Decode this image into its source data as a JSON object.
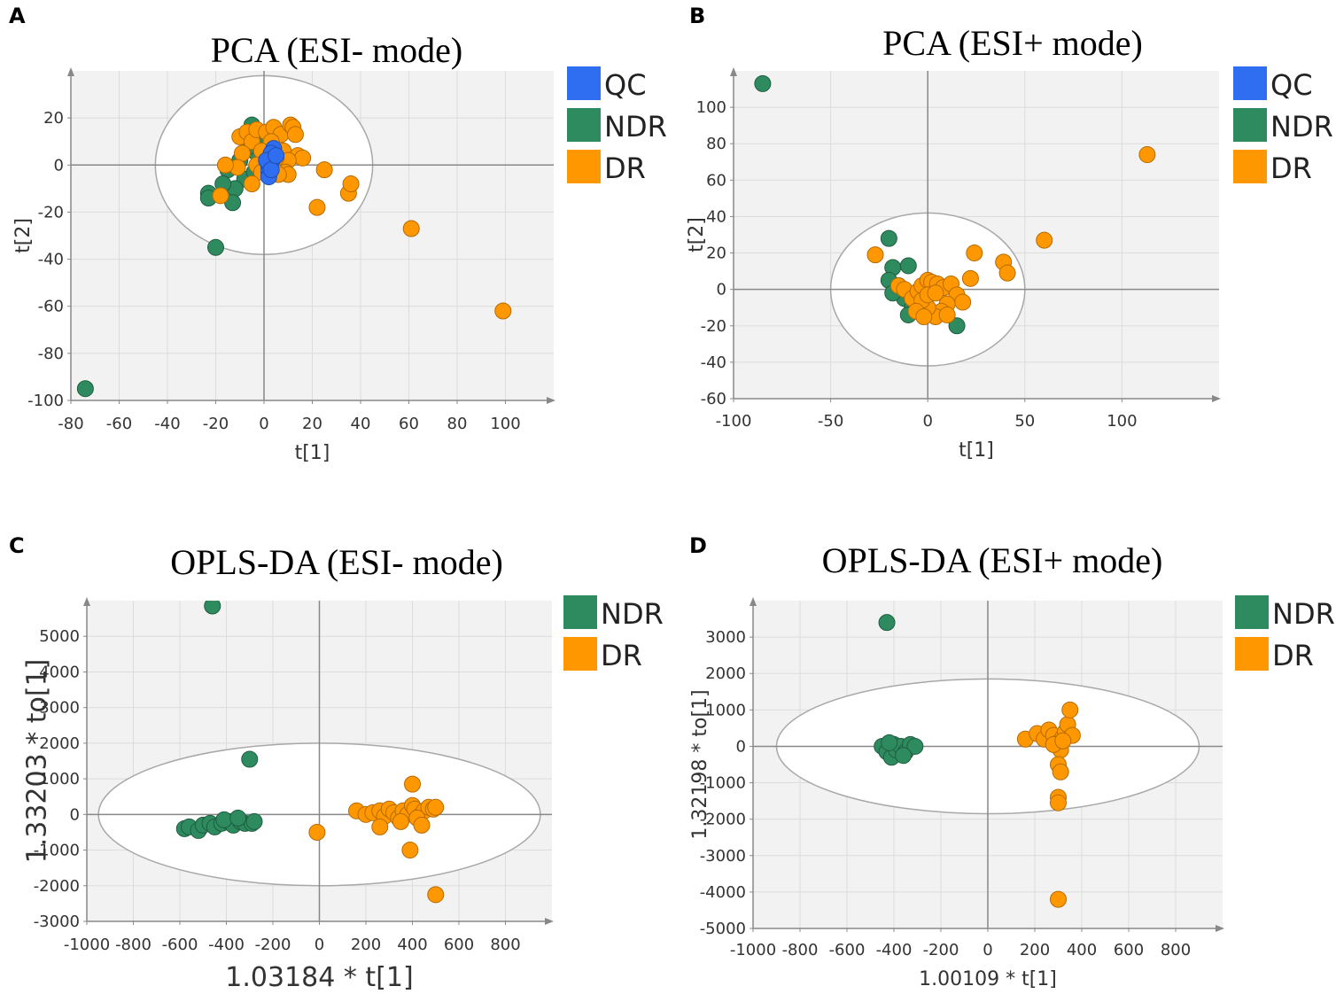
{
  "colors": {
    "QC": "#2f6ef0",
    "NDR": "#2e8b5f",
    "DR": "#ff9800",
    "plot_bg": "#f2f2f2",
    "grid": "#dcdcdc",
    "axis": "#888888",
    "ellipse": "#a8a8a8"
  },
  "chart_data": [
    {
      "type": "scatter",
      "panel": "A",
      "title": "PCA (ESI- mode)",
      "xlabel": "t[1]",
      "ylabel": "t[2]",
      "xlim": [
        -80,
        120
      ],
      "ylim": [
        -100,
        40
      ],
      "xticks": [
        -80,
        -60,
        -40,
        -20,
        0,
        20,
        40,
        60,
        80,
        100
      ],
      "yticks": [
        -100,
        -80,
        -60,
        -40,
        -20,
        0,
        20
      ],
      "ellipse": {
        "cx": 0,
        "cy": 0,
        "rx": 45,
        "ry": 38
      },
      "legend": [
        "QC",
        "NDR",
        "DR"
      ],
      "series": [
        {
          "name": "NDR",
          "points": [
            [
              -5,
              17
            ],
            [
              -1,
              12
            ],
            [
              -3,
              5
            ],
            [
              -10,
              2
            ],
            [
              -15,
              -2
            ],
            [
              -8,
              -6
            ],
            [
              -12,
              -10
            ],
            [
              -17,
              -8
            ],
            [
              -23,
              -12
            ],
            [
              -23,
              -14
            ],
            [
              -13,
              -16
            ],
            [
              -20,
              -35
            ],
            [
              -74,
              -95
            ],
            [
              -4,
              -3
            ],
            [
              -6,
              8
            ]
          ]
        },
        {
          "name": "DR",
          "points": [
            [
              -10,
              12
            ],
            [
              -7,
              14
            ],
            [
              -5,
              10
            ],
            [
              -3,
              15
            ],
            [
              1,
              14
            ],
            [
              4,
              16
            ],
            [
              7,
              13
            ],
            [
              11,
              17
            ],
            [
              12,
              16
            ],
            [
              13,
              13
            ],
            [
              3,
              10
            ],
            [
              8,
              6
            ],
            [
              14,
              4
            ],
            [
              16,
              3
            ],
            [
              10,
              2
            ],
            [
              5,
              3
            ],
            [
              -1,
              6
            ],
            [
              -9,
              5
            ],
            [
              -11,
              -1
            ],
            [
              -16,
              0
            ],
            [
              -3,
              0
            ],
            [
              2,
              -1
            ],
            [
              -1,
              -3
            ],
            [
              9,
              -3
            ],
            [
              10,
              -4
            ],
            [
              6,
              -4
            ],
            [
              -5,
              -8
            ],
            [
              -18,
              -13
            ],
            [
              25,
              -2
            ],
            [
              22,
              -18
            ],
            [
              35,
              -12
            ],
            [
              36,
              -8
            ],
            [
              61,
              -27
            ],
            [
              99,
              -62
            ]
          ]
        },
        {
          "name": "QC",
          "points": [
            [
              4,
              7
            ],
            [
              3,
              5
            ],
            [
              4,
              3
            ],
            [
              3,
              1
            ],
            [
              2,
              -1
            ],
            [
              2,
              -3
            ],
            [
              2,
              -5
            ],
            [
              1,
              2
            ],
            [
              3,
              -2
            ],
            [
              5,
              4
            ]
          ]
        }
      ]
    },
    {
      "type": "scatter",
      "panel": "B",
      "title": "PCA (ESI+ mode)",
      "xlabel": "t[1]",
      "ylabel": "t[2]",
      "xlim": [
        -100,
        150
      ],
      "ylim": [
        -60,
        120
      ],
      "xticks": [
        -100,
        -50,
        0,
        50,
        100
      ],
      "yticks": [
        -60,
        -40,
        -20,
        0,
        20,
        40,
        60,
        80,
        100
      ],
      "ellipse": {
        "cx": 0,
        "cy": 0,
        "rx": 50,
        "ry": 42
      },
      "legend": [
        "QC",
        "NDR",
        "DR"
      ],
      "series": [
        {
          "name": "NDR",
          "points": [
            [
              -85,
              113
            ],
            [
              -20,
              28
            ],
            [
              -18,
              12
            ],
            [
              -10,
              13
            ],
            [
              -20,
              5
            ],
            [
              -15,
              2
            ],
            [
              -12,
              -5
            ],
            [
              -8,
              -10
            ],
            [
              -10,
              -14
            ],
            [
              -5,
              -8
            ],
            [
              -2,
              -12
            ],
            [
              15,
              -20
            ],
            [
              -18,
              -2
            ]
          ]
        },
        {
          "name": "DR",
          "points": [
            [
              -27,
              19
            ],
            [
              -15,
              2
            ],
            [
              -12,
              0
            ],
            [
              -8,
              -5
            ],
            [
              -5,
              -1
            ],
            [
              -3,
              2
            ],
            [
              0,
              5
            ],
            [
              2,
              4
            ],
            [
              5,
              3
            ],
            [
              8,
              1
            ],
            [
              12,
              3
            ],
            [
              15,
              -3
            ],
            [
              18,
              -7
            ],
            [
              10,
              -8
            ],
            [
              7,
              -12
            ],
            [
              4,
              -15
            ],
            [
              0,
              -10
            ],
            [
              -3,
              -6
            ],
            [
              -6,
              -12
            ],
            [
              0,
              -3
            ],
            [
              4,
              -2
            ],
            [
              22,
              6
            ],
            [
              24,
              20
            ],
            [
              39,
              15
            ],
            [
              41,
              9
            ],
            [
              60,
              27
            ],
            [
              113,
              74
            ],
            [
              10,
              -14
            ],
            [
              -2,
              -15
            ]
          ]
        },
        {
          "name": "QC",
          "points": []
        }
      ]
    },
    {
      "type": "scatter",
      "panel": "C",
      "title": "OPLS-DA (ESI- mode)",
      "xlabel": "1.03184 * t[1]",
      "ylabel": "1.33203 * to[1]",
      "xlim": [
        -1000,
        1000
      ],
      "ylim": [
        -3000,
        6000
      ],
      "xticks": [
        -1000,
        -800,
        -600,
        -400,
        -200,
        0,
        200,
        400,
        600,
        800
      ],
      "yticks": [
        -3000,
        -2000,
        -1000,
        0,
        1000,
        2000,
        3000,
        4000,
        5000
      ],
      "ellipse": {
        "cx": 0,
        "cy": 0,
        "rx": 950,
        "ry": 2000
      },
      "legend": [
        "NDR",
        "DR"
      ],
      "series": [
        {
          "name": "NDR",
          "points": [
            [
              -460,
              5850
            ],
            [
              -300,
              1550
            ],
            [
              -580,
              -400
            ],
            [
              -560,
              -350
            ],
            [
              -520,
              -450
            ],
            [
              -500,
              -300
            ],
            [
              -470,
              -250
            ],
            [
              -450,
              -350
            ],
            [
              -420,
              -250
            ],
            [
              -390,
              -200
            ],
            [
              -370,
              -300
            ],
            [
              -340,
              -200
            ],
            [
              -320,
              -250
            ],
            [
              -290,
              -250
            ],
            [
              -410,
              -150
            ],
            [
              -350,
              -100
            ],
            [
              -280,
              -200
            ]
          ]
        },
        {
          "name": "DR",
          "points": [
            [
              -10,
              -500
            ],
            [
              160,
              100
            ],
            [
              200,
              0
            ],
            [
              230,
              50
            ],
            [
              260,
              100
            ],
            [
              280,
              -50
            ],
            [
              300,
              150
            ],
            [
              320,
              50
            ],
            [
              340,
              -100
            ],
            [
              360,
              100
            ],
            [
              380,
              0
            ],
            [
              400,
              250
            ],
            [
              410,
              150
            ],
            [
              430,
              -50
            ],
            [
              450,
              100
            ],
            [
              470,
              200
            ],
            [
              490,
              150
            ],
            [
              500,
              200
            ],
            [
              400,
              850
            ],
            [
              390,
              -1000
            ],
            [
              500,
              -2250
            ],
            [
              260,
              -350
            ],
            [
              350,
              -200
            ],
            [
              420,
              -100
            ],
            [
              440,
              -300
            ]
          ]
        }
      ]
    },
    {
      "type": "scatter",
      "panel": "D",
      "title": "OPLS-DA (ESI+ mode)",
      "xlabel": "1.00109 * t[1]",
      "ylabel": "1.32198 * to[1]",
      "xlim": [
        -1000,
        1000
      ],
      "ylim": [
        -5000,
        4000
      ],
      "xticks": [
        -1000,
        -800,
        -600,
        -400,
        -200,
        0,
        200,
        400,
        600,
        800
      ],
      "yticks": [
        -5000,
        -4000,
        -3000,
        -2000,
        -1000,
        0,
        1000,
        2000,
        3000
      ],
      "ellipse": {
        "cx": 0,
        "cy": 0,
        "rx": 900,
        "ry": 1850
      },
      "legend": [
        "NDR",
        "DR"
      ],
      "series": [
        {
          "name": "NDR",
          "points": [
            [
              -430,
              3400
            ],
            [
              -450,
              0
            ],
            [
              -430,
              -150
            ],
            [
              -410,
              -300
            ],
            [
              -400,
              50
            ],
            [
              -390,
              -100
            ],
            [
              -370,
              0
            ],
            [
              -350,
              -150
            ],
            [
              -330,
              50
            ],
            [
              -310,
              0
            ],
            [
              -420,
              100
            ],
            [
              -360,
              -250
            ]
          ]
        },
        {
          "name": "DR",
          "points": [
            [
              160,
              200
            ],
            [
              210,
              350
            ],
            [
              240,
              200
            ],
            [
              260,
              450
            ],
            [
              280,
              300
            ],
            [
              300,
              100
            ],
            [
              310,
              -100
            ],
            [
              320,
              250
            ],
            [
              330,
              400
            ],
            [
              340,
              600
            ],
            [
              350,
              1000
            ],
            [
              360,
              300
            ],
            [
              300,
              -500
            ],
            [
              310,
              -700
            ],
            [
              300,
              -1400
            ],
            [
              300,
              -1550
            ],
            [
              300,
              -4200
            ],
            [
              280,
              50
            ],
            [
              320,
              150
            ]
          ]
        }
      ]
    }
  ]
}
